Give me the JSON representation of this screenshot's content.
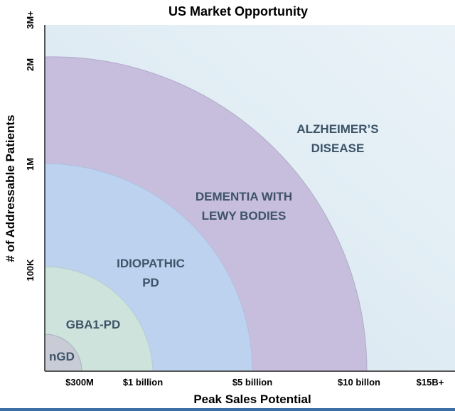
{
  "title": "US Market Opportunity",
  "x_axis": {
    "label": "Peak Sales Potential",
    "ticks": [
      "$300M",
      "$1 billion",
      "$5 billion",
      "$10 billon",
      "$15B+"
    ]
  },
  "y_axis": {
    "label": "# of Addressable Patients",
    "ticks": [
      "3M+",
      "2M",
      "1M",
      "100K"
    ]
  },
  "regions": [
    {
      "lines": [
        "ALZHEIMER’S",
        "DISEASE"
      ]
    },
    {
      "lines": [
        "DEMENTIA WITH",
        "LEWY BODIES"
      ]
    },
    {
      "lines": [
        "IDIOPATHIC",
        "PD"
      ]
    },
    {
      "lines": [
        "GBA1-PD"
      ]
    },
    {
      "lines": [
        "nGD"
      ]
    }
  ]
}
